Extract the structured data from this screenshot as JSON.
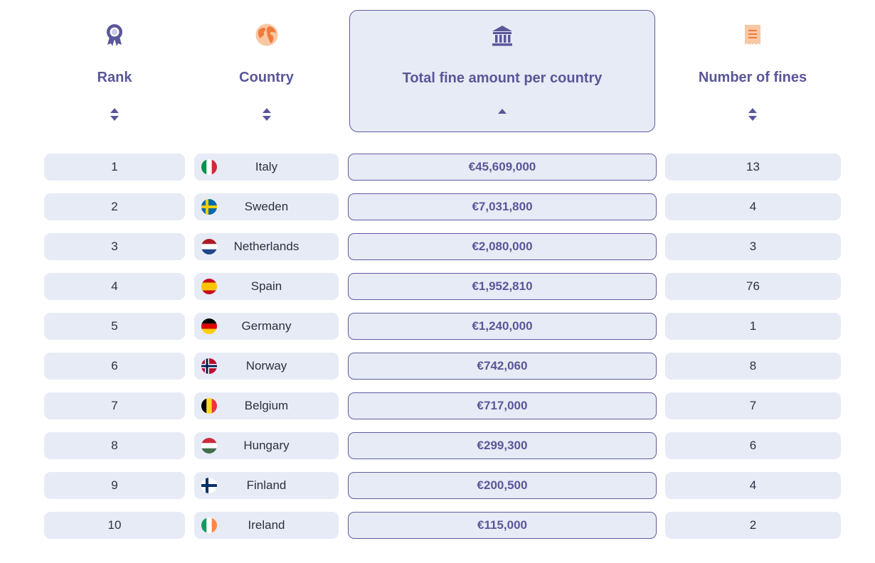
{
  "columns": [
    {
      "key": "rank",
      "title": "Rank",
      "icon": "award-ribbon-icon",
      "sort": "both"
    },
    {
      "key": "country",
      "title": "Country",
      "icon": "globe-icon",
      "sort": "both"
    },
    {
      "key": "total",
      "title": "Total fine amount per country",
      "icon": "bank-building-icon",
      "sort": "asc",
      "active": true
    },
    {
      "key": "count",
      "title": "Number of fines",
      "icon": "receipt-icon",
      "sort": "both"
    }
  ],
  "rows": [
    {
      "rank": "1",
      "country": "Italy",
      "flag": "italy-flag-icon",
      "total": "€45,609,000",
      "count": "13"
    },
    {
      "rank": "2",
      "country": "Sweden",
      "flag": "sweden-flag-icon",
      "total": "€7,031,800",
      "count": "4"
    },
    {
      "rank": "3",
      "country": "Netherlands",
      "flag": "netherlands-flag-icon",
      "total": "€2,080,000",
      "count": "3"
    },
    {
      "rank": "4",
      "country": "Spain",
      "flag": "spain-flag-icon",
      "total": "€1,952,810",
      "count": "76"
    },
    {
      "rank": "5",
      "country": "Germany",
      "flag": "germany-flag-icon",
      "total": "€1,240,000",
      "count": "1"
    },
    {
      "rank": "6",
      "country": "Norway",
      "flag": "norway-flag-icon",
      "total": "€742,060",
      "count": "8"
    },
    {
      "rank": "7",
      "country": "Belgium",
      "flag": "belgium-flag-icon",
      "total": "€717,000",
      "count": "7"
    },
    {
      "rank": "8",
      "country": "Hungary",
      "flag": "hungary-flag-icon",
      "total": "€299,300",
      "count": "6"
    },
    {
      "rank": "9",
      "country": "Finland",
      "flag": "finland-flag-icon",
      "total": "€200,500",
      "count": "4"
    },
    {
      "rank": "10",
      "country": "Ireland",
      "flag": "ireland-flag-icon",
      "total": "€115,000",
      "count": "2"
    }
  ],
  "colors": {
    "accent": "#5a5699",
    "cell_bg": "#e6ebf6",
    "border": "#5f5b9c",
    "orange": "#f07b3a"
  }
}
